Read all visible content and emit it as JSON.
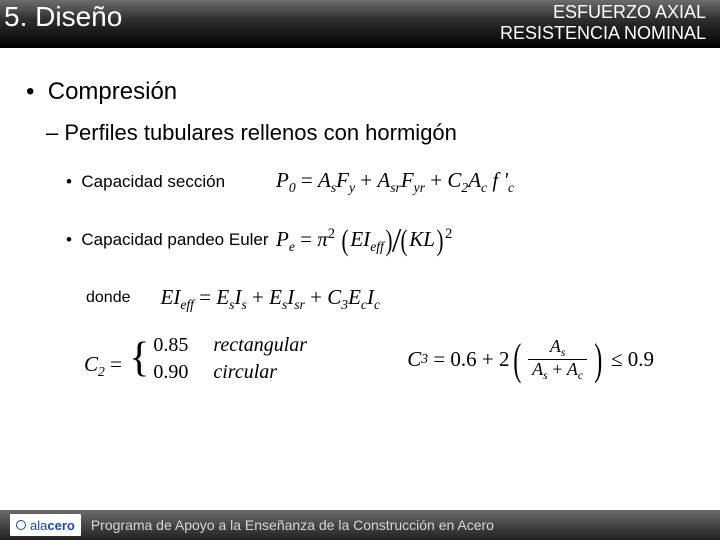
{
  "header": {
    "left": "5. Diseño",
    "right_line1": "ESFUERZO AXIAL",
    "right_line2": "RESISTENCIA NOMINAL"
  },
  "content": {
    "level1": "Compresión",
    "level2": "Perfiles tubulares rellenos con hormigón",
    "item1_label": "Capacidad sección",
    "item2_label": "Capacidad pandeo Euler",
    "donde": "donde"
  },
  "equations": {
    "p0": {
      "lhs_sym": "P",
      "lhs_sub": "0",
      "t1s": "A",
      "t1sub": "s",
      "t2s": "F",
      "t2sub": "y",
      "t3s": "A",
      "t3sub": "sr",
      "t4s": "F",
      "t4sub": "yr",
      "t5s": "C",
      "t5sub": "2",
      "t6s": "A",
      "t6sub": "c",
      "t7": "f '",
      "t7sub": "c"
    },
    "pe": {
      "lhs_sym": "P",
      "lhs_sub": "e",
      "pi": "π",
      "ei": "EI",
      "eff": "eff",
      "kl": "KL"
    },
    "eieff": {
      "lhs": "EI",
      "lhs_sub": "eff",
      "a": "E",
      "asub": "s",
      "b": "I",
      "bsub": "s",
      "c": "E",
      "csub": "s",
      "d": "I",
      "dsub": "sr",
      "e": "C",
      "esub": "3",
      "f": "E",
      "fsub": "c",
      "g": "I",
      "gsub": "c"
    },
    "c2": {
      "sym": "C",
      "sub": "2",
      "v1": "0.85",
      "w1": "rectangular",
      "v2": "0.90",
      "w2": "circular"
    },
    "c3": {
      "sym": "C",
      "sub": "3",
      "a": "0.6",
      "b": "2",
      "top_s": "A",
      "top_sub": "s",
      "bot1_s": "A",
      "bot1_sub": "s",
      "bot2_s": "A",
      "bot2_sub": "c",
      "rhs": "0.9"
    }
  },
  "footer": {
    "logo_plain": "ala",
    "logo_bold": "cero",
    "text": "Programa de Apoyo a la Enseñanza de la Construcción en Acero"
  },
  "colors": {
    "header_grad_top": "#6b6e70",
    "header_grad_bottom": "#000000",
    "footer_grad_top": "#6a6c6e",
    "footer_grad_bottom": "#202021",
    "logo_fg": "#1b4aa0",
    "page_bg": "#ffffff",
    "text": "#000000",
    "footer_text": "#d7d8d9"
  }
}
